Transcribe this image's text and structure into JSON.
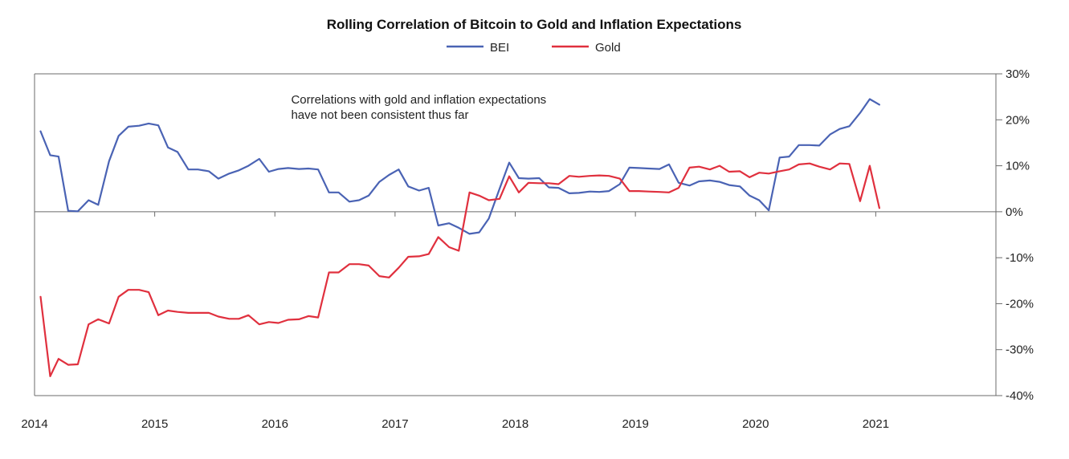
{
  "chart_data": {
    "type": "line",
    "title": "Rolling Correlation of Bitcoin to Gold and Inflation Expectations",
    "xlabel": "",
    "ylabel": "",
    "xlim": [
      2014,
      2022
    ],
    "ylim": [
      -40,
      30
    ],
    "x_ticks": [
      "2014",
      "2015",
      "2016",
      "2017",
      "2018",
      "2019",
      "2020",
      "2021"
    ],
    "y_ticks": [
      "30%",
      "20%",
      "10%",
      "0%",
      "-10%",
      "-20%",
      "-30%",
      "-40%"
    ],
    "y_axis_side": "right",
    "legend_position": "top-center",
    "grid": false,
    "annotation": {
      "line1": "Correlations with gold and inflation expectations",
      "line2": "have not been consistent thus far",
      "at": {
        "x": 2015.4,
        "y": 23.5
      }
    },
    "series": [
      {
        "name": "BEI",
        "color": "#4a63b4",
        "points": [
          [
            2014.05,
            17.5
          ],
          [
            2014.13,
            12.3
          ],
          [
            2014.2,
            12.0
          ],
          [
            2014.28,
            0.2
          ],
          [
            2014.36,
            0.1
          ],
          [
            2014.45,
            2.5
          ],
          [
            2014.53,
            1.5
          ],
          [
            2014.62,
            11.0
          ],
          [
            2014.7,
            16.5
          ],
          [
            2014.78,
            18.5
          ],
          [
            2014.87,
            18.7
          ],
          [
            2014.95,
            19.2
          ],
          [
            2015.03,
            18.8
          ],
          [
            2015.11,
            14.0
          ],
          [
            2015.19,
            13.0
          ],
          [
            2015.28,
            9.2
          ],
          [
            2015.36,
            9.2
          ],
          [
            2015.45,
            8.8
          ],
          [
            2015.53,
            7.2
          ],
          [
            2015.62,
            8.3
          ],
          [
            2015.7,
            9.0
          ],
          [
            2015.78,
            10.0
          ],
          [
            2015.87,
            11.5
          ],
          [
            2015.95,
            8.7
          ],
          [
            2016.03,
            9.3
          ],
          [
            2016.11,
            9.5
          ],
          [
            2016.2,
            9.3
          ],
          [
            2016.28,
            9.4
          ],
          [
            2016.36,
            9.2
          ],
          [
            2016.45,
            4.2
          ],
          [
            2016.53,
            4.2
          ],
          [
            2016.62,
            2.2
          ],
          [
            2016.7,
            2.5
          ],
          [
            2016.78,
            3.5
          ],
          [
            2016.87,
            6.5
          ],
          [
            2016.95,
            8.0
          ],
          [
            2017.03,
            9.2
          ],
          [
            2017.11,
            5.5
          ],
          [
            2017.2,
            4.6
          ],
          [
            2017.28,
            5.2
          ],
          [
            2017.36,
            -3.0
          ],
          [
            2017.45,
            -2.5
          ],
          [
            2017.53,
            -3.5
          ],
          [
            2017.62,
            -4.8
          ],
          [
            2017.7,
            -4.5
          ],
          [
            2017.78,
            -1.5
          ],
          [
            2017.87,
            5.0
          ],
          [
            2017.95,
            10.7
          ],
          [
            2018.03,
            7.3
          ],
          [
            2018.11,
            7.2
          ],
          [
            2018.2,
            7.3
          ],
          [
            2018.28,
            5.3
          ],
          [
            2018.36,
            5.2
          ],
          [
            2018.45,
            4.0
          ],
          [
            2018.53,
            4.1
          ],
          [
            2018.62,
            4.4
          ],
          [
            2018.7,
            4.3
          ],
          [
            2018.78,
            4.5
          ],
          [
            2018.87,
            6.0
          ],
          [
            2018.95,
            9.6
          ],
          [
            2019.03,
            9.5
          ],
          [
            2019.11,
            9.4
          ],
          [
            2019.2,
            9.3
          ],
          [
            2019.28,
            10.3
          ],
          [
            2019.36,
            6.3
          ],
          [
            2019.45,
            5.7
          ],
          [
            2019.53,
            6.6
          ],
          [
            2019.62,
            6.8
          ],
          [
            2019.7,
            6.5
          ],
          [
            2019.78,
            5.8
          ],
          [
            2019.87,
            5.5
          ],
          [
            2019.95,
            3.5
          ],
          [
            2020.03,
            2.5
          ],
          [
            2020.11,
            0.3
          ],
          [
            2020.2,
            11.8
          ],
          [
            2020.28,
            12.0
          ],
          [
            2020.36,
            14.5
          ],
          [
            2020.45,
            14.5
          ],
          [
            2020.53,
            14.4
          ],
          [
            2020.62,
            16.8
          ],
          [
            2020.7,
            18.0
          ],
          [
            2020.78,
            18.6
          ],
          [
            2020.87,
            21.5
          ],
          [
            2020.95,
            24.5
          ],
          [
            2021.03,
            23.3
          ]
        ]
      },
      {
        "name": "Gold",
        "color": "#e0303e",
        "points": [
          [
            2014.05,
            -18.5
          ],
          [
            2014.13,
            -35.8
          ],
          [
            2014.2,
            -32.0
          ],
          [
            2014.28,
            -33.3
          ],
          [
            2014.36,
            -33.2
          ],
          [
            2014.45,
            -24.5
          ],
          [
            2014.53,
            -23.4
          ],
          [
            2014.62,
            -24.3
          ],
          [
            2014.7,
            -18.5
          ],
          [
            2014.78,
            -17.0
          ],
          [
            2014.87,
            -17.0
          ],
          [
            2014.95,
            -17.5
          ],
          [
            2015.03,
            -22.5
          ],
          [
            2015.11,
            -21.5
          ],
          [
            2015.19,
            -21.8
          ],
          [
            2015.28,
            -22.0
          ],
          [
            2015.36,
            -22.0
          ],
          [
            2015.45,
            -22.0
          ],
          [
            2015.53,
            -22.8
          ],
          [
            2015.62,
            -23.3
          ],
          [
            2015.7,
            -23.3
          ],
          [
            2015.78,
            -22.5
          ],
          [
            2015.87,
            -24.5
          ],
          [
            2015.95,
            -24.0
          ],
          [
            2016.03,
            -24.2
          ],
          [
            2016.11,
            -23.5
          ],
          [
            2016.2,
            -23.4
          ],
          [
            2016.28,
            -22.7
          ],
          [
            2016.36,
            -23.0
          ],
          [
            2016.45,
            -13.2
          ],
          [
            2016.53,
            -13.2
          ],
          [
            2016.62,
            -11.4
          ],
          [
            2016.7,
            -11.4
          ],
          [
            2016.78,
            -11.7
          ],
          [
            2016.87,
            -14.0
          ],
          [
            2016.95,
            -14.3
          ],
          [
            2017.03,
            -12.2
          ],
          [
            2017.11,
            -9.8
          ],
          [
            2017.2,
            -9.7
          ],
          [
            2017.28,
            -9.2
          ],
          [
            2017.36,
            -5.5
          ],
          [
            2017.45,
            -7.7
          ],
          [
            2017.53,
            -8.5
          ],
          [
            2017.62,
            4.2
          ],
          [
            2017.7,
            3.5
          ],
          [
            2017.78,
            2.5
          ],
          [
            2017.87,
            2.8
          ],
          [
            2017.95,
            7.7
          ],
          [
            2018.03,
            4.2
          ],
          [
            2018.11,
            6.3
          ],
          [
            2018.2,
            6.2
          ],
          [
            2018.28,
            6.2
          ],
          [
            2018.36,
            6.0
          ],
          [
            2018.45,
            7.8
          ],
          [
            2018.53,
            7.6
          ],
          [
            2018.62,
            7.8
          ],
          [
            2018.7,
            7.9
          ],
          [
            2018.78,
            7.8
          ],
          [
            2018.87,
            7.2
          ],
          [
            2018.95,
            4.5
          ],
          [
            2019.03,
            4.5
          ],
          [
            2019.11,
            4.4
          ],
          [
            2019.2,
            4.3
          ],
          [
            2019.28,
            4.2
          ],
          [
            2019.36,
            5.2
          ],
          [
            2019.45,
            9.6
          ],
          [
            2019.53,
            9.8
          ],
          [
            2019.62,
            9.2
          ],
          [
            2019.7,
            10.0
          ],
          [
            2019.78,
            8.7
          ],
          [
            2019.87,
            8.8
          ],
          [
            2019.95,
            7.5
          ],
          [
            2020.03,
            8.5
          ],
          [
            2020.11,
            8.3
          ],
          [
            2020.2,
            8.8
          ],
          [
            2020.28,
            9.2
          ],
          [
            2020.36,
            10.3
          ],
          [
            2020.45,
            10.5
          ],
          [
            2020.53,
            9.8
          ],
          [
            2020.62,
            9.2
          ],
          [
            2020.7,
            10.5
          ],
          [
            2020.78,
            10.4
          ],
          [
            2020.87,
            2.3
          ],
          [
            2020.95,
            10.0
          ],
          [
            2021.03,
            0.8
          ]
        ]
      }
    ]
  }
}
